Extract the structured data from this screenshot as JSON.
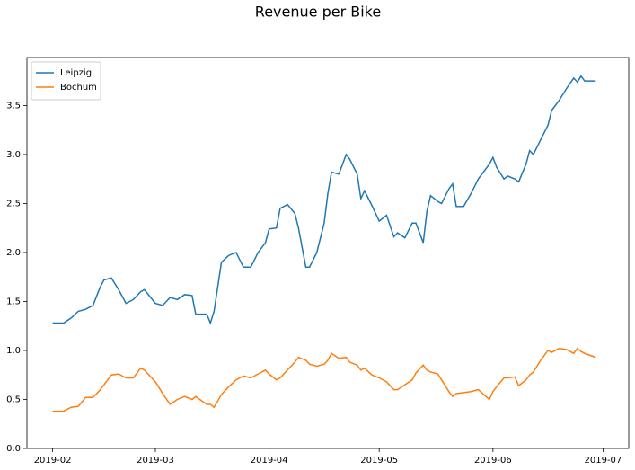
{
  "chart_data": {
    "type": "line",
    "title": "Revenue per Bike",
    "x": [
      "2019-02-01",
      "2019-02-04",
      "2019-02-06",
      "2019-02-08",
      "2019-02-10",
      "2019-02-12",
      "2019-02-14",
      "2019-02-15",
      "2019-02-17",
      "2019-02-19",
      "2019-02-21",
      "2019-02-23",
      "2019-02-25",
      "2019-02-26",
      "2019-03-01",
      "2019-03-03",
      "2019-03-05",
      "2019-03-07",
      "2019-03-09",
      "2019-03-11",
      "2019-03-12",
      "2019-03-15",
      "2019-03-16",
      "2019-03-17",
      "2019-03-19",
      "2019-03-21",
      "2019-03-23",
      "2019-03-25",
      "2019-03-27",
      "2019-03-29",
      "2019-03-31",
      "2019-04-01",
      "2019-04-03",
      "2019-04-04",
      "2019-04-06",
      "2019-04-08",
      "2019-04-09",
      "2019-04-11",
      "2019-04-12",
      "2019-04-14",
      "2019-04-16",
      "2019-04-17",
      "2019-04-18",
      "2019-04-20",
      "2019-04-22",
      "2019-04-23",
      "2019-04-25",
      "2019-04-26",
      "2019-04-27",
      "2019-04-29",
      "2019-05-01",
      "2019-05-03",
      "2019-05-05",
      "2019-05-06",
      "2019-05-08",
      "2019-05-10",
      "2019-05-11",
      "2019-05-13",
      "2019-05-14",
      "2019-05-15",
      "2019-05-17",
      "2019-05-18",
      "2019-05-20",
      "2019-05-21",
      "2019-05-22",
      "2019-05-24",
      "2019-05-26",
      "2019-05-28",
      "2019-05-31",
      "2019-06-01",
      "2019-06-02",
      "2019-06-04",
      "2019-06-05",
      "2019-06-07",
      "2019-06-08",
      "2019-06-10",
      "2019-06-11",
      "2019-06-12",
      "2019-06-14",
      "2019-06-16",
      "2019-06-17",
      "2019-06-19",
      "2019-06-21",
      "2019-06-23",
      "2019-06-24",
      "2019-06-25",
      "2019-06-26",
      "2019-06-29"
    ],
    "series": [
      {
        "name": "Leipzig",
        "color": "#1f77b4",
        "values": [
          1.28,
          1.28,
          1.33,
          1.4,
          1.42,
          1.46,
          1.65,
          1.72,
          1.74,
          1.62,
          1.48,
          1.52,
          1.6,
          1.62,
          1.48,
          1.46,
          1.54,
          1.52,
          1.57,
          1.56,
          1.37,
          1.37,
          1.28,
          1.4,
          1.9,
          1.97,
          2.0,
          1.85,
          1.85,
          2.0,
          2.1,
          2.24,
          2.25,
          2.45,
          2.49,
          2.4,
          2.25,
          1.85,
          1.85,
          2.0,
          2.3,
          2.6,
          2.82,
          2.8,
          3.0,
          2.95,
          2.8,
          2.55,
          2.63,
          2.48,
          2.32,
          2.38,
          2.16,
          2.2,
          2.15,
          2.3,
          2.3,
          2.1,
          2.42,
          2.58,
          2.52,
          2.5,
          2.65,
          2.7,
          2.47,
          2.47,
          2.6,
          2.75,
          2.9,
          2.97,
          2.87,
          2.75,
          2.78,
          2.75,
          2.72,
          2.9,
          3.04,
          3.0,
          3.15,
          3.3,
          3.45,
          3.55,
          3.67,
          3.78,
          3.74,
          3.8,
          3.75,
          3.75
        ]
      },
      {
        "name": "Bochum",
        "color": "#ff7f0e",
        "values": [
          0.38,
          0.38,
          0.42,
          0.43,
          0.52,
          0.52,
          0.6,
          0.65,
          0.75,
          0.76,
          0.72,
          0.72,
          0.82,
          0.8,
          0.68,
          0.56,
          0.45,
          0.5,
          0.53,
          0.5,
          0.53,
          0.45,
          0.45,
          0.42,
          0.55,
          0.63,
          0.7,
          0.74,
          0.72,
          0.76,
          0.8,
          0.76,
          0.7,
          0.72,
          0.8,
          0.88,
          0.93,
          0.9,
          0.86,
          0.84,
          0.86,
          0.9,
          0.97,
          0.92,
          0.93,
          0.88,
          0.85,
          0.8,
          0.82,
          0.75,
          0.72,
          0.68,
          0.6,
          0.6,
          0.65,
          0.7,
          0.77,
          0.85,
          0.8,
          0.78,
          0.76,
          0.7,
          0.58,
          0.53,
          0.56,
          0.57,
          0.58,
          0.6,
          0.5,
          0.58,
          0.63,
          0.72,
          0.72,
          0.73,
          0.64,
          0.7,
          0.75,
          0.78,
          0.9,
          1.0,
          0.98,
          1.02,
          1.01,
          0.97,
          1.02,
          0.99,
          0.97,
          0.93
        ]
      }
    ],
    "xlim": [
      "2019-01-25",
      "2019-07-08"
    ],
    "xticks": [
      {
        "value": "2019-02-01",
        "label": "2019-02"
      },
      {
        "value": "2019-03-01",
        "label": "2019-03"
      },
      {
        "value": "2019-04-01",
        "label": "2019-04"
      },
      {
        "value": "2019-05-01",
        "label": "2019-05"
      },
      {
        "value": "2019-06-01",
        "label": "2019-06"
      },
      {
        "value": "2019-07-01",
        "label": "2019-07"
      }
    ],
    "ylim": [
      0,
      3.99
    ],
    "yticks": [
      {
        "value": 0,
        "label": "0.0"
      },
      0.5,
      {
        "value": 1,
        "label": "1.0"
      },
      1.5,
      {
        "value": 2,
        "label": "2.0"
      },
      2.5,
      {
        "value": 3,
        "label": "3.0"
      },
      3.5
    ],
    "legend": "upper left",
    "grid": false
  }
}
